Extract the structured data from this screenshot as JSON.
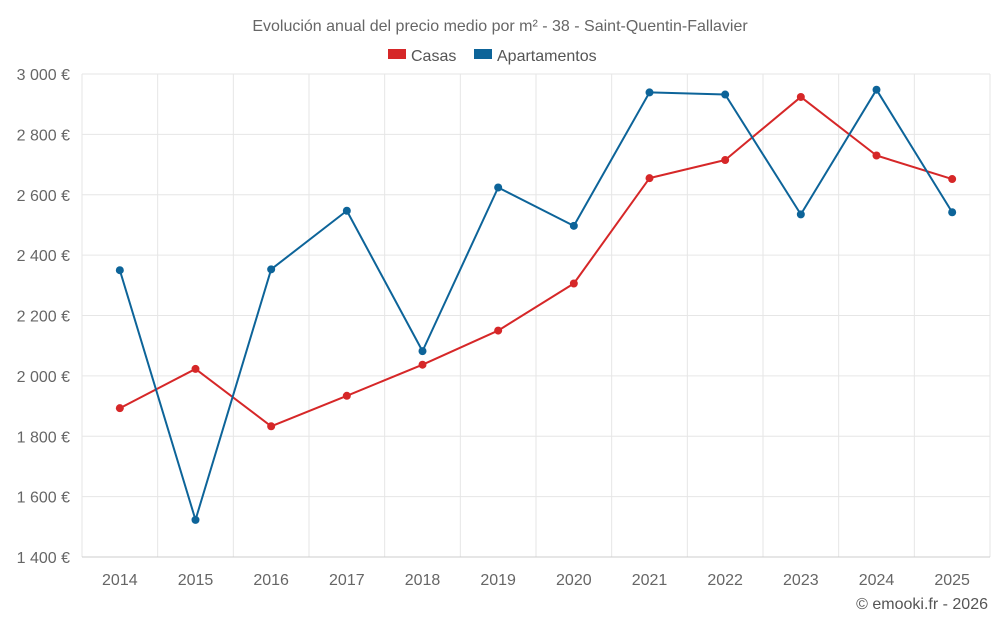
{
  "chart_data": {
    "type": "line",
    "title": "Evolución anual del precio medio por m² - 38 - Saint-Quentin-Fallavier",
    "categories": [
      "2014",
      "2015",
      "2016",
      "2017",
      "2018",
      "2019",
      "2020",
      "2021",
      "2022",
      "2023",
      "2024",
      "2025"
    ],
    "series": [
      {
        "name": "Casas",
        "color": "#d62728",
        "values": [
          1893,
          2023,
          1833,
          1934,
          2037,
          2150,
          2306,
          2655,
          2715,
          2924,
          2730,
          2652
        ]
      },
      {
        "name": "Apartamentos",
        "color": "#0d6499",
        "values": [
          2350,
          1523,
          2353,
          2547,
          2082,
          2624,
          2497,
          2939,
          2932,
          2535,
          2948,
          2542
        ]
      }
    ],
    "ylim": [
      1400,
      3000
    ],
    "yticks": [
      1400,
      1600,
      1800,
      2000,
      2200,
      2400,
      2600,
      2800,
      3000
    ],
    "ytick_labels": [
      "1 400 €",
      "1 600 €",
      "1 800 €",
      "2 000 €",
      "2 200 €",
      "2 400 €",
      "2 600 €",
      "2 800 €",
      "3 000 €"
    ],
    "xlabel": "",
    "ylabel": "",
    "grid": true,
    "legend_position": "top"
  },
  "credit": "© emooki.fr - 2026"
}
